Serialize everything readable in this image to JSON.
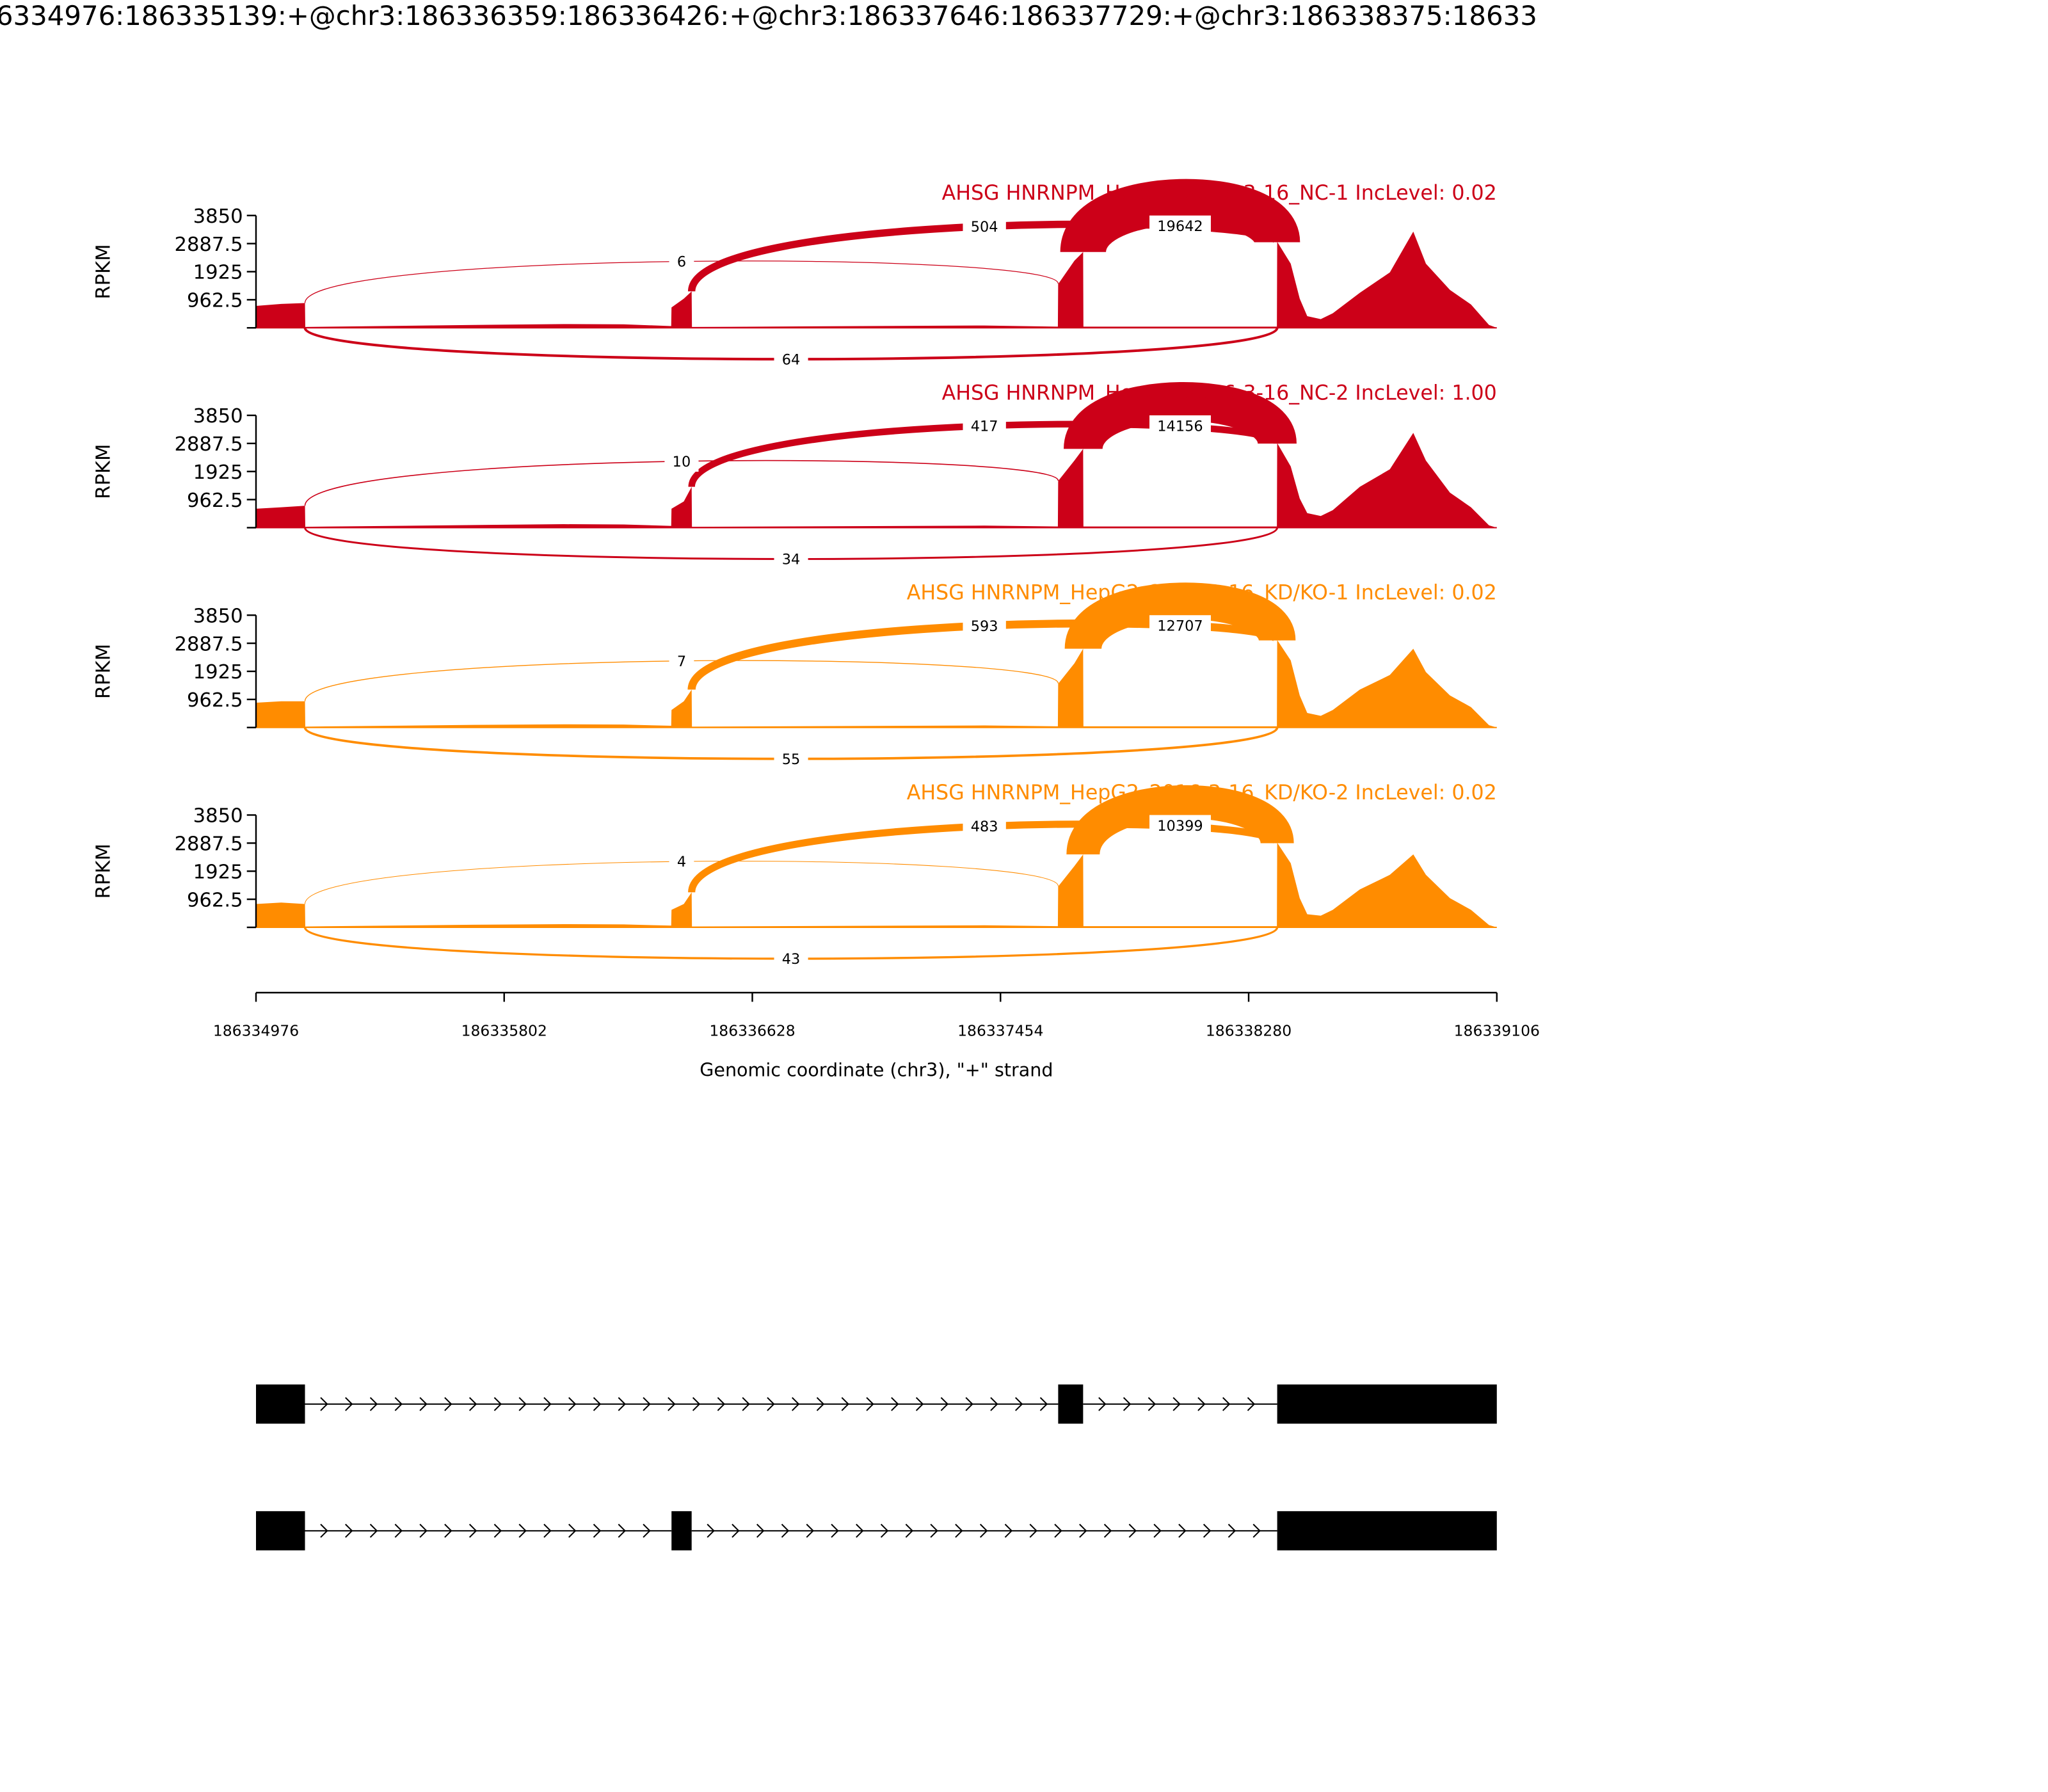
{
  "title": "6334976:186335139:+@chr3:186336359:186336426:+@chr3:186337646:186337729:+@chr3:186338375:18633",
  "chart_data": {
    "type": "area",
    "subtype": "sashimi",
    "xlabel": "Genomic coordinate (chr3), \"+\" strand",
    "ylabel": "RPKM",
    "xlim": [
      186334976,
      186339106
    ],
    "ylim": [
      0,
      3850
    ],
    "xticks": [
      "186334976",
      "186335802",
      "186336628",
      "186337454",
      "186338280",
      "186339106"
    ],
    "yticks": [
      "962.5",
      "1925",
      "2887.5",
      "3850"
    ],
    "grid": false,
    "colors": {
      "NC": "#cc0018",
      "KD": "#ff8c00"
    },
    "panels": [
      {
        "label": "AHSG HNRNPM_HepG2_2016-3-16_NC-1 IncLevel: 0.02",
        "color": "#cc0018",
        "junctions": [
          {
            "start": 186335139,
            "end": 186337646,
            "count": "6",
            "side": "above"
          },
          {
            "start": 186336426,
            "end": 186338375,
            "count": "504",
            "side": "above"
          },
          {
            "start": 186337729,
            "end": 186338375,
            "count": "19642",
            "side": "above"
          },
          {
            "start": 186335139,
            "end": 186338375,
            "count": "64",
            "side": "below"
          }
        ],
        "coverage": [
          [
            186334976,
            750
          ],
          [
            186335060,
            820
          ],
          [
            186335139,
            850
          ],
          [
            186335140,
            30
          ],
          [
            186335700,
            100
          ],
          [
            186336000,
            130
          ],
          [
            186336200,
            120
          ],
          [
            186336358,
            60
          ],
          [
            186336359,
            700
          ],
          [
            186336400,
            1000
          ],
          [
            186336426,
            1250
          ],
          [
            186336427,
            30
          ],
          [
            186337400,
            80
          ],
          [
            186337645,
            40
          ],
          [
            186337646,
            1500
          ],
          [
            186337700,
            2300
          ],
          [
            186337729,
            2600
          ],
          [
            186337730,
            40
          ],
          [
            186338374,
            40
          ],
          [
            186338375,
            2950
          ],
          [
            186338420,
            2200
          ],
          [
            186338450,
            1000
          ],
          [
            186338475,
            400
          ],
          [
            186338520,
            300
          ],
          [
            186338560,
            500
          ],
          [
            186338650,
            1200
          ],
          [
            186338750,
            1900
          ],
          [
            186338828,
            3300
          ],
          [
            186338870,
            2200
          ],
          [
            186338950,
            1300
          ],
          [
            186339020,
            800
          ],
          [
            186339080,
            100
          ],
          [
            186339106,
            0
          ]
        ]
      },
      {
        "label": "AHSG HNRNPM_HepG2_2016-3-16_NC-2 IncLevel: 1.00",
        "color": "#cc0018",
        "junctions": [
          {
            "start": 186335139,
            "end": 186337646,
            "count": "10",
            "side": "above"
          },
          {
            "start": 186336426,
            "end": 186338375,
            "count": "417",
            "side": "above"
          },
          {
            "start": 186337729,
            "end": 186338375,
            "count": "14156",
            "side": "above"
          },
          {
            "start": 186335139,
            "end": 186338375,
            "count": "34",
            "side": "below"
          }
        ],
        "coverage": [
          [
            186334976,
            650
          ],
          [
            186335060,
            700
          ],
          [
            186335139,
            750
          ],
          [
            186335140,
            30
          ],
          [
            186335700,
            90
          ],
          [
            186336000,
            120
          ],
          [
            186336200,
            110
          ],
          [
            186336358,
            60
          ],
          [
            186336359,
            650
          ],
          [
            186336400,
            900
          ],
          [
            186336426,
            1400
          ],
          [
            186336427,
            30
          ],
          [
            186337400,
            70
          ],
          [
            186337645,
            40
          ],
          [
            186337646,
            1600
          ],
          [
            186337700,
            2300
          ],
          [
            186337729,
            2700
          ],
          [
            186337730,
            40
          ],
          [
            186338374,
            40
          ],
          [
            186338375,
            2900
          ],
          [
            186338420,
            2100
          ],
          [
            186338450,
            1000
          ],
          [
            186338475,
            500
          ],
          [
            186338520,
            400
          ],
          [
            186338560,
            600
          ],
          [
            186338650,
            1400
          ],
          [
            186338750,
            2000
          ],
          [
            186338828,
            3250
          ],
          [
            186338870,
            2300
          ],
          [
            186338950,
            1200
          ],
          [
            186339020,
            700
          ],
          [
            186339080,
            80
          ],
          [
            186339106,
            0
          ]
        ]
      },
      {
        "label": "AHSG HNRNPM_HepG2_2016-3-16_KD/KO-1 IncLevel: 0.02",
        "color": "#ff8c00",
        "junctions": [
          {
            "start": 186335139,
            "end": 186337646,
            "count": "7",
            "side": "above"
          },
          {
            "start": 186336426,
            "end": 186338375,
            "count": "593",
            "side": "above"
          },
          {
            "start": 186337729,
            "end": 186338375,
            "count": "12707",
            "side": "above"
          },
          {
            "start": 186335139,
            "end": 186338375,
            "count": "55",
            "side": "below"
          }
        ],
        "coverage": [
          [
            186334976,
            850
          ],
          [
            186335060,
            900
          ],
          [
            186335139,
            900
          ],
          [
            186335140,
            30
          ],
          [
            186335700,
            90
          ],
          [
            186336000,
            110
          ],
          [
            186336200,
            100
          ],
          [
            186336358,
            60
          ],
          [
            186336359,
            600
          ],
          [
            186336400,
            900
          ],
          [
            186336426,
            1300
          ],
          [
            186336427,
            30
          ],
          [
            186337400,
            70
          ],
          [
            186337645,
            40
          ],
          [
            186337646,
            1500
          ],
          [
            186337700,
            2200
          ],
          [
            186337729,
            2700
          ],
          [
            186337730,
            40
          ],
          [
            186338374,
            40
          ],
          [
            186338375,
            3000
          ],
          [
            186338420,
            2300
          ],
          [
            186338450,
            1100
          ],
          [
            186338475,
            500
          ],
          [
            186338520,
            400
          ],
          [
            186338560,
            600
          ],
          [
            186338650,
            1300
          ],
          [
            186338750,
            1800
          ],
          [
            186338828,
            2700
          ],
          [
            186338870,
            1900
          ],
          [
            186338950,
            1100
          ],
          [
            186339020,
            700
          ],
          [
            186339080,
            80
          ],
          [
            186339106,
            0
          ]
        ]
      },
      {
        "label": "AHSG HNRNPM_HepG2_2016-3-16_KD/KO-2 IncLevel: 0.02",
        "color": "#ff8c00",
        "junctions": [
          {
            "start": 186335139,
            "end": 186337646,
            "count": "4",
            "side": "above"
          },
          {
            "start": 186336426,
            "end": 186338375,
            "count": "483",
            "side": "above"
          },
          {
            "start": 186337729,
            "end": 186338375,
            "count": "10399",
            "side": "above"
          },
          {
            "start": 186335139,
            "end": 186338375,
            "count": "43",
            "side": "below"
          }
        ],
        "coverage": [
          [
            186334976,
            800
          ],
          [
            186335060,
            850
          ],
          [
            186335139,
            800
          ],
          [
            186335140,
            30
          ],
          [
            186335700,
            90
          ],
          [
            186336000,
            110
          ],
          [
            186336200,
            100
          ],
          [
            186336358,
            60
          ],
          [
            186336359,
            600
          ],
          [
            186336400,
            800
          ],
          [
            186336426,
            1200
          ],
          [
            186336427,
            30
          ],
          [
            186337400,
            70
          ],
          [
            186337645,
            40
          ],
          [
            186337646,
            1400
          ],
          [
            186337700,
            2100
          ],
          [
            186337729,
            2500
          ],
          [
            186337730,
            40
          ],
          [
            186338374,
            40
          ],
          [
            186338375,
            2900
          ],
          [
            186338420,
            2200
          ],
          [
            186338450,
            1000
          ],
          [
            186338475,
            450
          ],
          [
            186338520,
            400
          ],
          [
            186338560,
            600
          ],
          [
            186338650,
            1300
          ],
          [
            186338750,
            1800
          ],
          [
            186338828,
            2500
          ],
          [
            186338870,
            1800
          ],
          [
            186338950,
            1000
          ],
          [
            186339020,
            600
          ],
          [
            186339080,
            80
          ],
          [
            186339106,
            0
          ]
        ]
      }
    ],
    "transcripts": [
      {
        "exons": [
          [
            186334976,
            186335139
          ],
          [
            186337646,
            186337729
          ],
          [
            186338375,
            186339106
          ]
        ],
        "strand": "+"
      },
      {
        "exons": [
          [
            186334976,
            186335139
          ],
          [
            186336359,
            186336426
          ],
          [
            186338375,
            186339106
          ]
        ],
        "strand": "+"
      }
    ]
  }
}
